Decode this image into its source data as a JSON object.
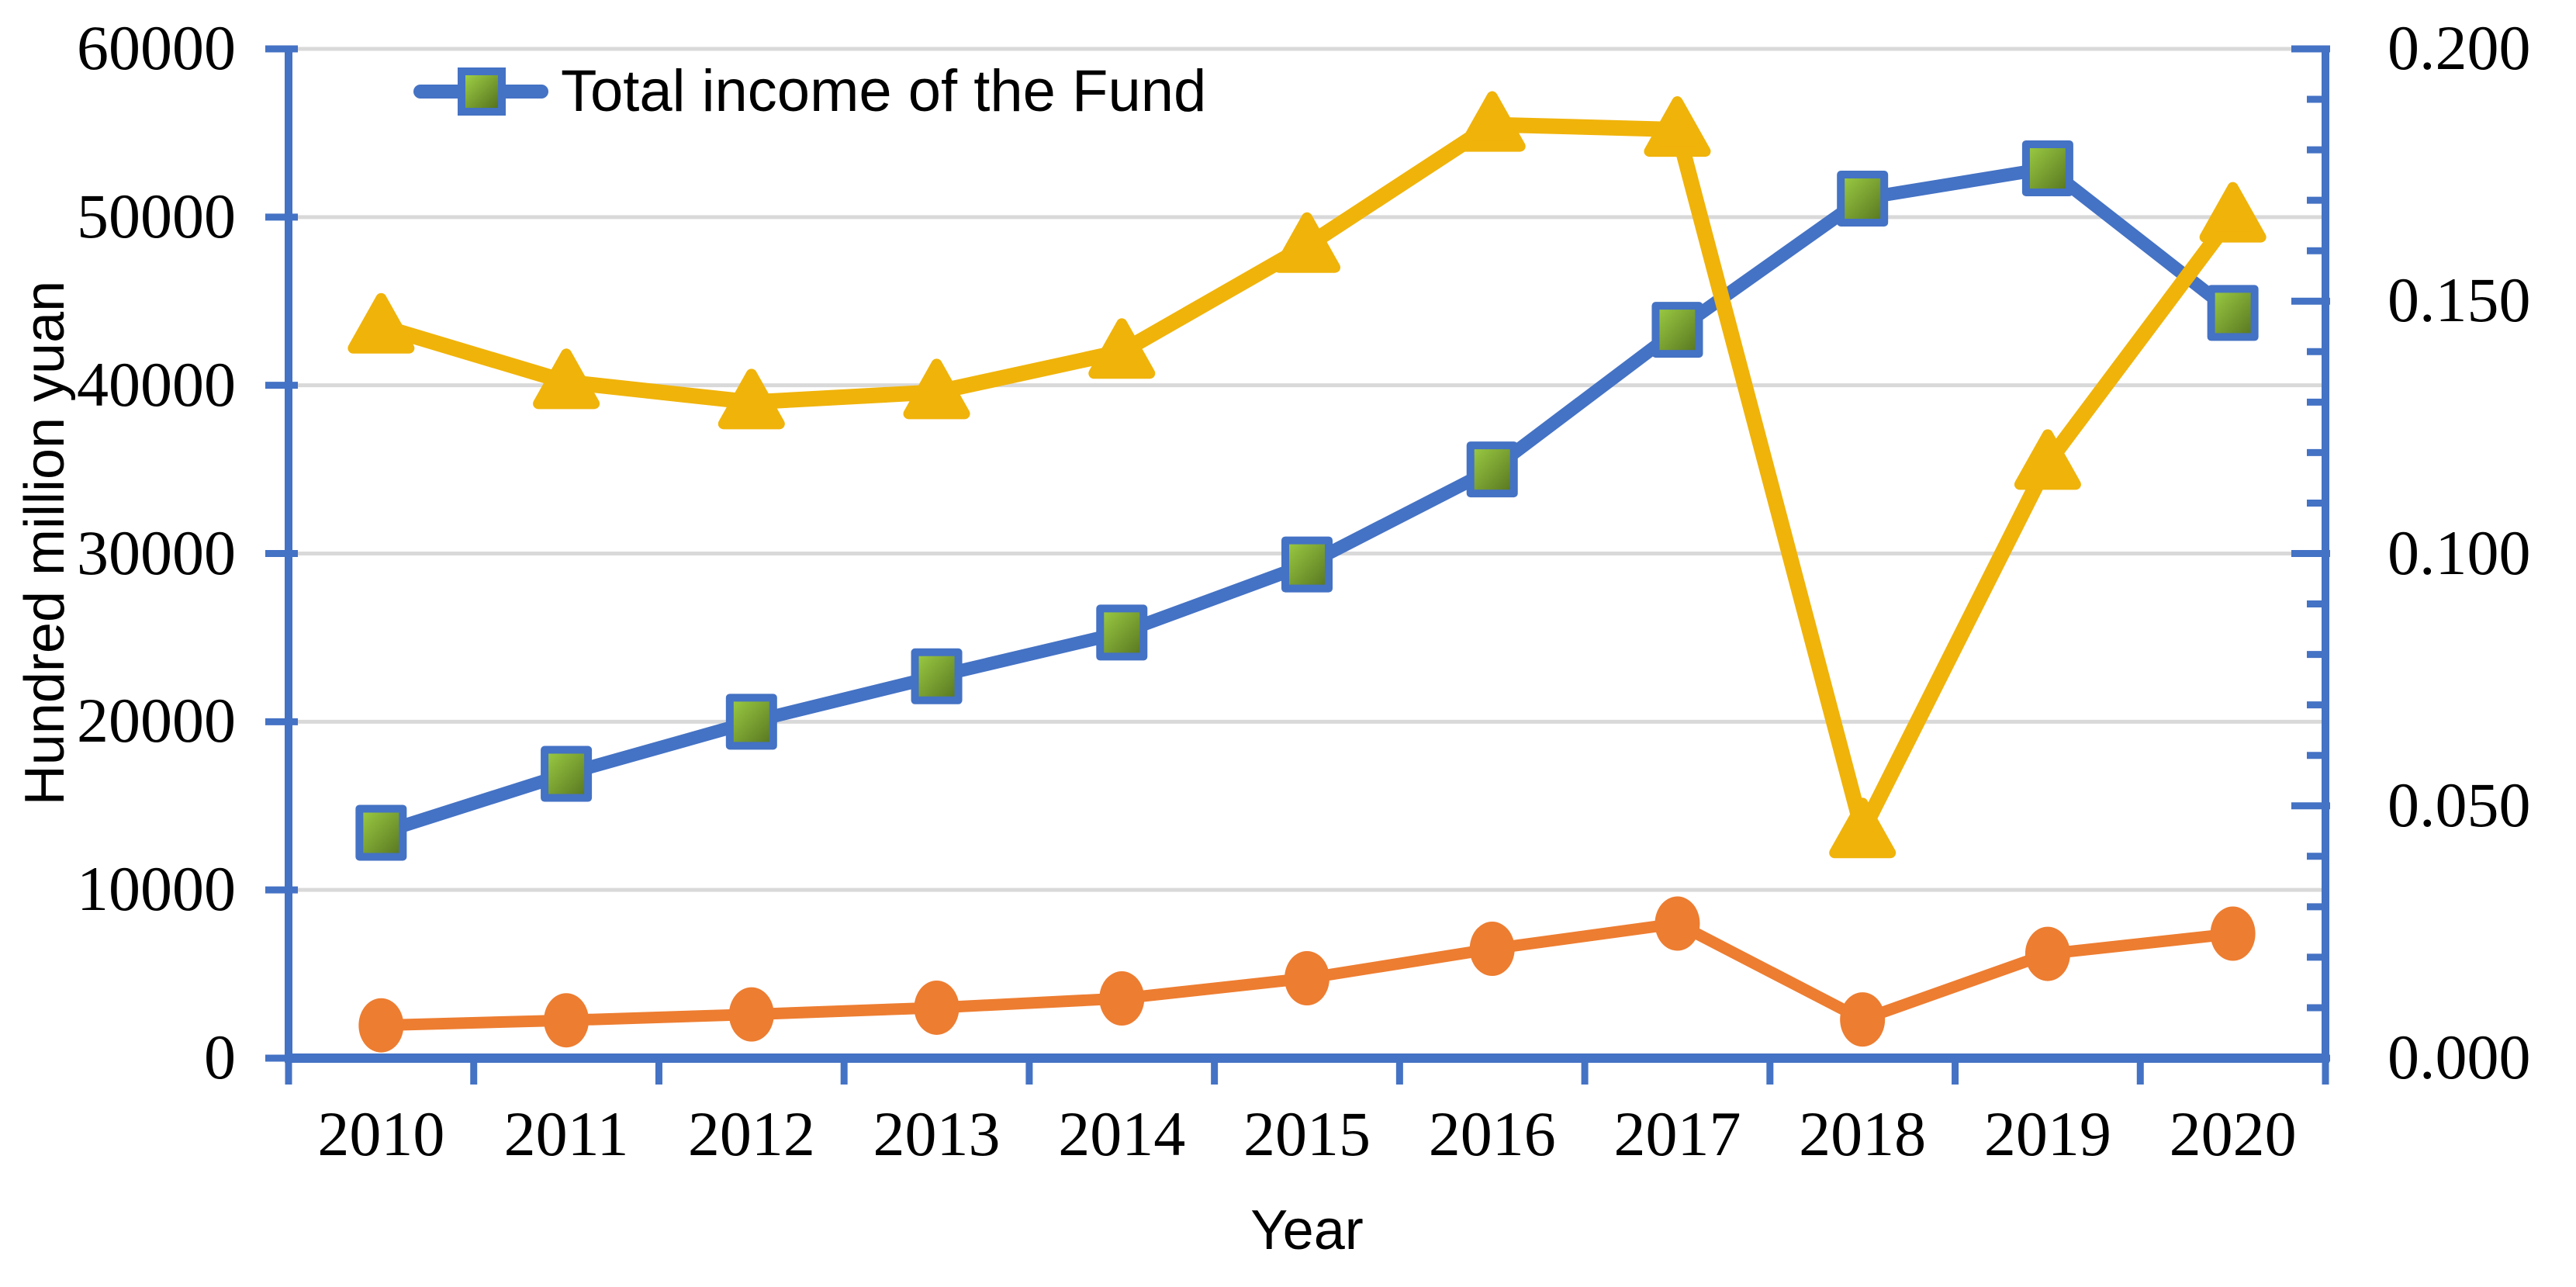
{
  "chart_data": {
    "type": "line",
    "title": "",
    "categories": [
      "2010",
      "2011",
      "2012",
      "2013",
      "2014",
      "2015",
      "2016",
      "2017",
      "2018",
      "2019",
      "2020"
    ],
    "x_axis_title": "Year",
    "y_left_axis_title": "Hundred million yuan",
    "y_left_ticks": [
      "0",
      "10000",
      "20000",
      "30000",
      "40000",
      "50000",
      "60000"
    ],
    "y_left_range": [
      0,
      60000
    ],
    "y_right_ticks": [
      "0.000",
      "0.050",
      "0.100",
      "0.150",
      "0.200"
    ],
    "y_right_range": [
      0,
      0.2
    ],
    "y_right_minor_step": 0.01,
    "grid": true,
    "legend_position": "top-center-inside",
    "series": [
      {
        "name": "Total income of the Fund",
        "axis": "left",
        "marker": "square",
        "color": "#4472C4",
        "marker_fill_gradient": [
          "#9ecf44",
          "#55721f"
        ],
        "values": [
          13400,
          16900,
          20000,
          22700,
          25300,
          29350,
          35000,
          43300,
          51100,
          52900,
          44300
        ]
      },
      {
        "name": "",
        "axis": "left",
        "marker": "circle",
        "color": "#ED7D31",
        "values": [
          1950,
          2250,
          2600,
          3000,
          3550,
          4750,
          6500,
          8000,
          2300,
          6200,
          7400
        ]
      },
      {
        "name": "",
        "axis": "right",
        "marker": "triangle",
        "color": "#F0B30A",
        "values": [
          0.145,
          0.134,
          0.13,
          0.132,
          0.14,
          0.161,
          0.185,
          0.184,
          0.045,
          0.118,
          0.167
        ]
      }
    ]
  },
  "colors": {
    "axis": "#4472C4",
    "gridline": "#D9D9D9",
    "background": "#ffffff",
    "text": "#000000"
  }
}
